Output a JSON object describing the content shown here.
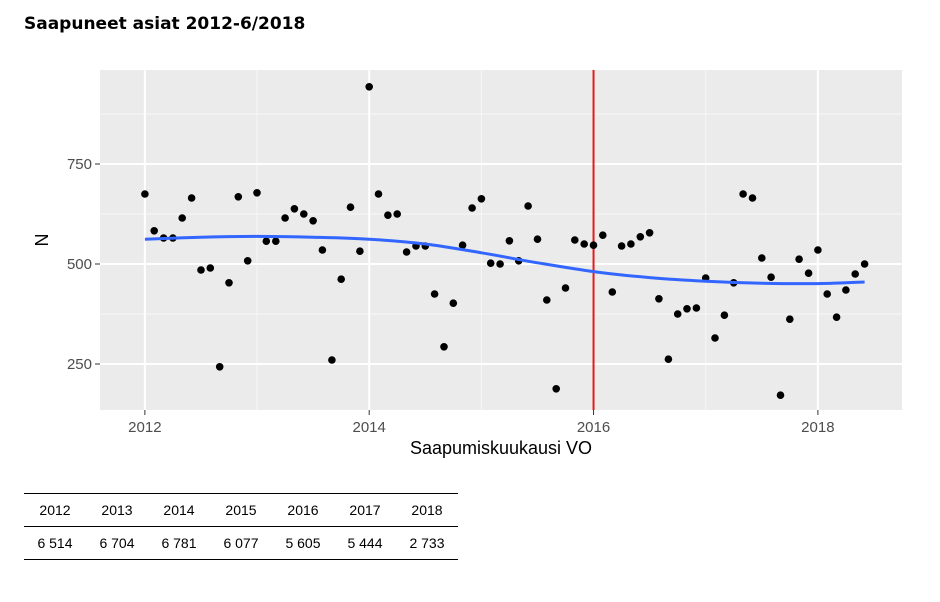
{
  "title": "Saapuneet asiat 2012-6/2018",
  "chart_data": {
    "type": "scatter",
    "xlabel": "Saapumiskuukausi VO",
    "ylabel": "N",
    "xlim": [
      2011.6,
      2018.75
    ],
    "ylim": [
      135,
      985
    ],
    "x_ticks": [
      2012,
      2014,
      2016,
      2018
    ],
    "y_ticks": [
      250,
      500,
      750
    ],
    "grid": true,
    "vline": {
      "x": 2016,
      "color": "#e41a1c"
    },
    "point_color": "#000000",
    "smooth_color": "#3366ff",
    "points": [
      {
        "x": 2012.0,
        "y": 675
      },
      {
        "x": 2012.083,
        "y": 583
      },
      {
        "x": 2012.167,
        "y": 565
      },
      {
        "x": 2012.25,
        "y": 565
      },
      {
        "x": 2012.333,
        "y": 615
      },
      {
        "x": 2012.417,
        "y": 665
      },
      {
        "x": 2012.5,
        "y": 485
      },
      {
        "x": 2012.583,
        "y": 490
      },
      {
        "x": 2012.667,
        "y": 243
      },
      {
        "x": 2012.75,
        "y": 453
      },
      {
        "x": 2012.833,
        "y": 668
      },
      {
        "x": 2012.917,
        "y": 508
      },
      {
        "x": 2013.0,
        "y": 678
      },
      {
        "x": 2013.083,
        "y": 557
      },
      {
        "x": 2013.167,
        "y": 557
      },
      {
        "x": 2013.25,
        "y": 615
      },
      {
        "x": 2013.333,
        "y": 638
      },
      {
        "x": 2013.417,
        "y": 625
      },
      {
        "x": 2013.5,
        "y": 608
      },
      {
        "x": 2013.583,
        "y": 535
      },
      {
        "x": 2013.667,
        "y": 260
      },
      {
        "x": 2013.75,
        "y": 462
      },
      {
        "x": 2013.833,
        "y": 642
      },
      {
        "x": 2013.917,
        "y": 532
      },
      {
        "x": 2014.0,
        "y": 943
      },
      {
        "x": 2014.083,
        "y": 675
      },
      {
        "x": 2014.167,
        "y": 622
      },
      {
        "x": 2014.25,
        "y": 625
      },
      {
        "x": 2014.333,
        "y": 530
      },
      {
        "x": 2014.417,
        "y": 545
      },
      {
        "x": 2014.5,
        "y": 545
      },
      {
        "x": 2014.583,
        "y": 425
      },
      {
        "x": 2014.667,
        "y": 293
      },
      {
        "x": 2014.75,
        "y": 402
      },
      {
        "x": 2014.833,
        "y": 547
      },
      {
        "x": 2014.917,
        "y": 640
      },
      {
        "x": 2015.0,
        "y": 663
      },
      {
        "x": 2015.083,
        "y": 502
      },
      {
        "x": 2015.167,
        "y": 500
      },
      {
        "x": 2015.25,
        "y": 558
      },
      {
        "x": 2015.333,
        "y": 508
      },
      {
        "x": 2015.417,
        "y": 645
      },
      {
        "x": 2015.5,
        "y": 562
      },
      {
        "x": 2015.583,
        "y": 410
      },
      {
        "x": 2015.667,
        "y": 188
      },
      {
        "x": 2015.75,
        "y": 440
      },
      {
        "x": 2015.833,
        "y": 560
      },
      {
        "x": 2015.917,
        "y": 550
      },
      {
        "x": 2016.0,
        "y": 547
      },
      {
        "x": 2016.083,
        "y": 572
      },
      {
        "x": 2016.167,
        "y": 430
      },
      {
        "x": 2016.25,
        "y": 545
      },
      {
        "x": 2016.333,
        "y": 550
      },
      {
        "x": 2016.417,
        "y": 568
      },
      {
        "x": 2016.5,
        "y": 578
      },
      {
        "x": 2016.583,
        "y": 413
      },
      {
        "x": 2016.667,
        "y": 262
      },
      {
        "x": 2016.75,
        "y": 375
      },
      {
        "x": 2016.833,
        "y": 388
      },
      {
        "x": 2016.917,
        "y": 390
      },
      {
        "x": 2017.0,
        "y": 465
      },
      {
        "x": 2017.083,
        "y": 315
      },
      {
        "x": 2017.167,
        "y": 372
      },
      {
        "x": 2017.25,
        "y": 453
      },
      {
        "x": 2017.333,
        "y": 675
      },
      {
        "x": 2017.417,
        "y": 665
      },
      {
        "x": 2017.5,
        "y": 515
      },
      {
        "x": 2017.583,
        "y": 467
      },
      {
        "x": 2017.667,
        "y": 172
      },
      {
        "x": 2017.75,
        "y": 362
      },
      {
        "x": 2017.833,
        "y": 512
      },
      {
        "x": 2017.917,
        "y": 477
      },
      {
        "x": 2018.0,
        "y": 535
      },
      {
        "x": 2018.083,
        "y": 425
      },
      {
        "x": 2018.167,
        "y": 367
      },
      {
        "x": 2018.25,
        "y": 435
      },
      {
        "x": 2018.333,
        "y": 475
      },
      {
        "x": 2018.417,
        "y": 500
      }
    ],
    "smooth": [
      {
        "x": 2012.0,
        "y": 562
      },
      {
        "x": 2012.5,
        "y": 567
      },
      {
        "x": 2013.0,
        "y": 569
      },
      {
        "x": 2013.5,
        "y": 567
      },
      {
        "x": 2014.0,
        "y": 562
      },
      {
        "x": 2014.5,
        "y": 550
      },
      {
        "x": 2015.0,
        "y": 528
      },
      {
        "x": 2015.5,
        "y": 503
      },
      {
        "x": 2016.0,
        "y": 481
      },
      {
        "x": 2016.5,
        "y": 466
      },
      {
        "x": 2017.0,
        "y": 457
      },
      {
        "x": 2017.5,
        "y": 452
      },
      {
        "x": 2018.0,
        "y": 451
      },
      {
        "x": 2018.417,
        "y": 455
      }
    ]
  },
  "summary_table": {
    "years": [
      "2012",
      "2013",
      "2014",
      "2015",
      "2016",
      "2017",
      "2018"
    ],
    "values": [
      "6 514",
      "6 704",
      "6 781",
      "6 077",
      "5 605",
      "5 444",
      "2 733"
    ]
  }
}
